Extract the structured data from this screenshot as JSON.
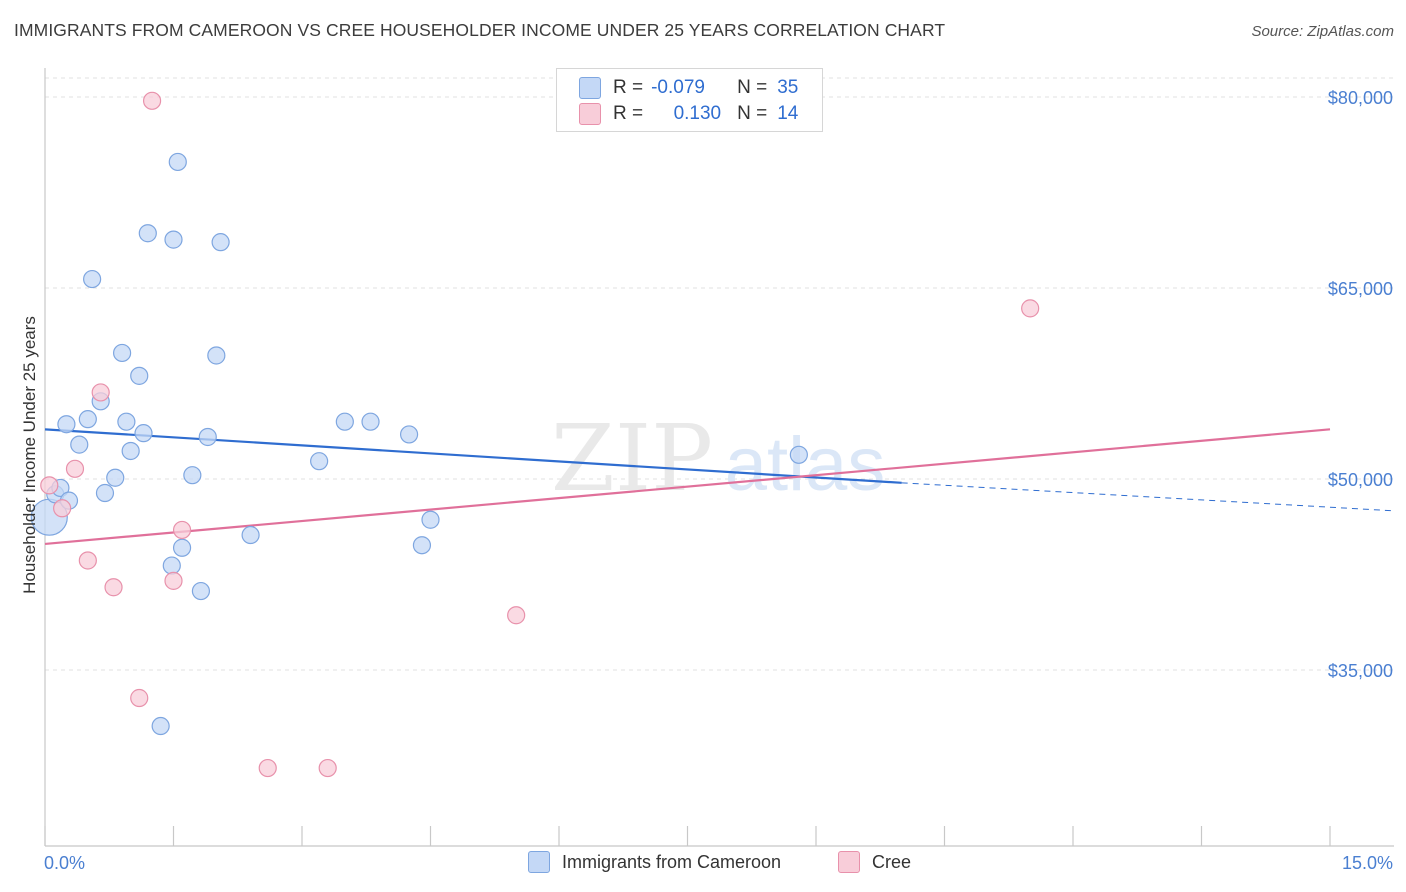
{
  "title": "IMMIGRANTS FROM CAMEROON VS CREE HOUSEHOLDER INCOME UNDER 25 YEARS CORRELATION CHART",
  "source": "Source: ZipAtlas.com",
  "watermark": {
    "zip": "ZIP",
    "atlas": "atlas"
  },
  "legend": {
    "rows": [
      {
        "r_label": "R =",
        "r_value": "-0.079",
        "n_label": "N =",
        "n_value": "35"
      },
      {
        "r_label": "R =",
        "r_value": "0.130",
        "n_label": "N =",
        "n_value": "14"
      }
    ]
  },
  "bottom_legend": [
    "Immigrants from Cameroon",
    "Cree"
  ],
  "chart_data": {
    "type": "scatter",
    "title": "IMMIGRANTS FROM CAMEROON VS CREE HOUSEHOLDER INCOME UNDER 25 YEARS CORRELATION CHART",
    "xlabel": "",
    "ylabel": "Householder Income Under 25 years",
    "xlim": [
      0,
      15
    ],
    "ylim": [
      20000,
      84000
    ],
    "x_tick_labels": [
      "0.0%",
      "15.0%"
    ],
    "y_ticks": [
      35000,
      50000,
      65000,
      80000
    ],
    "y_tick_labels": [
      "$35,000",
      "$50,000",
      "$65,000",
      "$80,000"
    ],
    "grid": true,
    "legend_position": "top-center",
    "series": [
      {
        "name": "Immigrants from Cameroon",
        "color": "#7ea6e0",
        "fill": "#c4d8f6",
        "line_color": "#2f6dd0",
        "trend": {
          "x": [
            0,
            10.0
          ],
          "y": [
            53900,
            49700
          ],
          "dashed_to": [
            15,
            47500
          ]
        },
        "points": [
          {
            "x": 0.05,
            "y": 47000,
            "big": true
          },
          {
            "x": 0.12,
            "y": 48800
          },
          {
            "x": 0.18,
            "y": 49300
          },
          {
            "x": 0.28,
            "y": 48300
          },
          {
            "x": 0.25,
            "y": 54300
          },
          {
            "x": 0.4,
            "y": 52700
          },
          {
            "x": 0.5,
            "y": 54700
          },
          {
            "x": 0.55,
            "y": 65700
          },
          {
            "x": 0.65,
            "y": 56100
          },
          {
            "x": 0.7,
            "y": 48900
          },
          {
            "x": 0.82,
            "y": 50100
          },
          {
            "x": 0.9,
            "y": 59900
          },
          {
            "x": 0.95,
            "y": 54500
          },
          {
            "x": 1.0,
            "y": 52200
          },
          {
            "x": 1.1,
            "y": 58100
          },
          {
            "x": 1.15,
            "y": 53600
          },
          {
            "x": 1.2,
            "y": 69300
          },
          {
            "x": 1.35,
            "y": 30600
          },
          {
            "x": 1.48,
            "y": 43200
          },
          {
            "x": 1.5,
            "y": 68800
          },
          {
            "x": 1.55,
            "y": 74900
          },
          {
            "x": 1.6,
            "y": 44600
          },
          {
            "x": 1.72,
            "y": 50300
          },
          {
            "x": 1.82,
            "y": 41200
          },
          {
            "x": 1.9,
            "y": 53300
          },
          {
            "x": 2.0,
            "y": 59700
          },
          {
            "x": 2.05,
            "y": 68600
          },
          {
            "x": 2.4,
            "y": 45600
          },
          {
            "x": 3.2,
            "y": 51400
          },
          {
            "x": 3.5,
            "y": 54500
          },
          {
            "x": 3.8,
            "y": 54500
          },
          {
            "x": 4.25,
            "y": 53500
          },
          {
            "x": 4.4,
            "y": 44800
          },
          {
            "x": 4.5,
            "y": 46800
          },
          {
            "x": 8.8,
            "y": 51900
          }
        ]
      },
      {
        "name": "Cree",
        "color": "#e891ab",
        "fill": "#f8cdd9",
        "line_color": "#e0709a",
        "trend": {
          "x": [
            0,
            15
          ],
          "y": [
            44900,
            53900
          ]
        },
        "points": [
          {
            "x": 0.05,
            "y": 49500
          },
          {
            "x": 0.2,
            "y": 47700
          },
          {
            "x": 0.35,
            "y": 50800
          },
          {
            "x": 0.5,
            "y": 43600
          },
          {
            "x": 0.65,
            "y": 56800
          },
          {
            "x": 0.8,
            "y": 41500
          },
          {
            "x": 1.1,
            "y": 32800
          },
          {
            "x": 1.25,
            "y": 79700
          },
          {
            "x": 1.5,
            "y": 42000
          },
          {
            "x": 1.6,
            "y": 46000
          },
          {
            "x": 2.6,
            "y": 27300
          },
          {
            "x": 3.3,
            "y": 27300
          },
          {
            "x": 5.5,
            "y": 39300
          },
          {
            "x": 11.5,
            "y": 63400
          }
        ]
      }
    ]
  }
}
